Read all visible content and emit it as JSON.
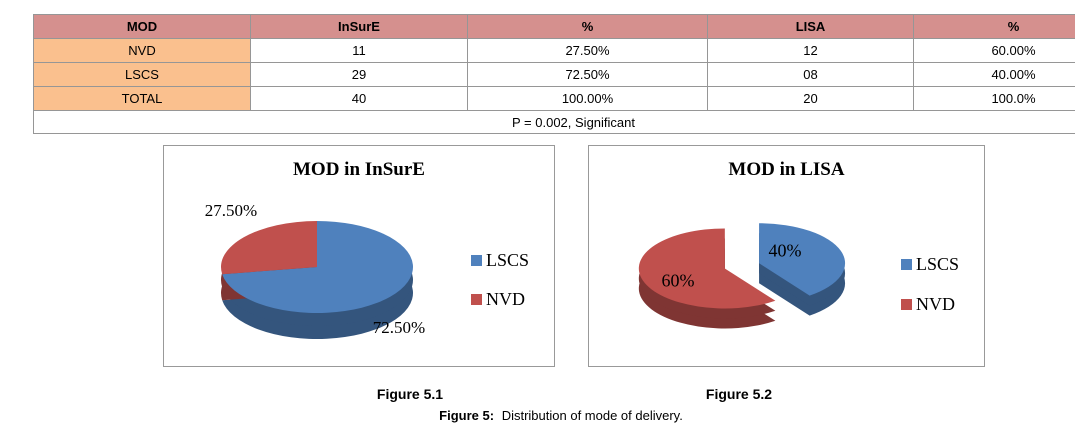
{
  "table": {
    "headers": [
      "MOD",
      "InSurE",
      "%",
      "LISA",
      "%"
    ],
    "rows": [
      [
        "NVD",
        "11",
        "27.50%",
        "12",
        "60.00%"
      ],
      [
        "LSCS",
        "29",
        "72.50%",
        "08",
        "40.00%"
      ],
      [
        "TOTAL",
        "40",
        "100.00%",
        "20",
        "100.0%"
      ]
    ],
    "footer": "P = 0.002, Significant"
  },
  "chart_data": [
    {
      "type": "pie",
      "title": "MOD in InSurE",
      "effect": "3d",
      "legend_position": "right",
      "legend": [
        "LSCS",
        "NVD"
      ],
      "slices": [
        {
          "name": "LSCS",
          "value": 72.5,
          "label": "72.50%",
          "color": "#4F81BD"
        },
        {
          "name": "NVD",
          "value": 27.5,
          "label": "27.50%",
          "color": "#C0504D"
        }
      ]
    },
    {
      "type": "pie",
      "title": "MOD in LISA",
      "effect": "3d-exploded",
      "legend_position": "right",
      "legend": [
        "LSCS",
        "NVD"
      ],
      "slices": [
        {
          "name": "LSCS",
          "value": 40,
          "label": "40%",
          "color": "#4F81BD"
        },
        {
          "name": "NVD",
          "value": 60,
          "label": "60%",
          "color": "#C0504D"
        }
      ]
    }
  ],
  "captions": {
    "figure1": "Figure 5.1",
    "figure2": "Figure 5.2",
    "main_label": "Figure 5:",
    "main_text": "Distribution of mode of delivery."
  },
  "colors": {
    "table_header_bg": "#D5908E",
    "table_label_col_bg": "#FAC08E",
    "table_border": "#969696",
    "figure_box_border": "#999999",
    "pie_blue": "#4F81BD",
    "pie_red": "#C0504D"
  }
}
